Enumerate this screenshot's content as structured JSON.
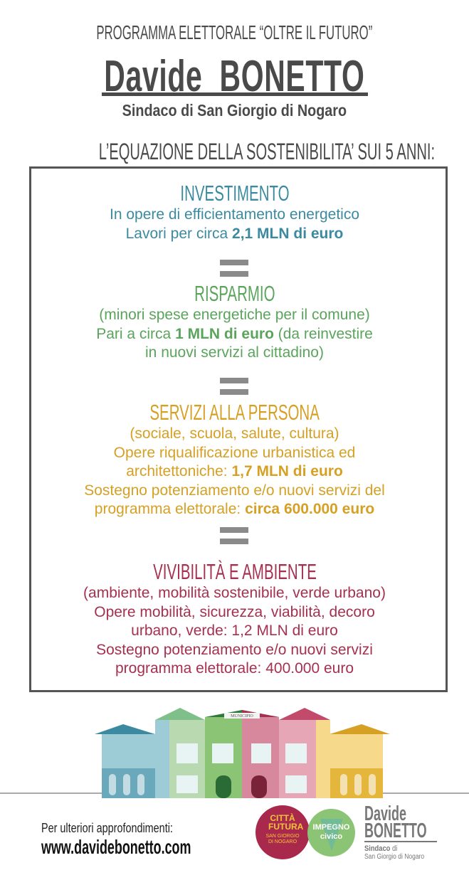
{
  "header": {
    "program_title": "PROGRAMMA ELETTORALE “OLTRE IL FUTURO”",
    "candidate_name": "Davide  BONETTO",
    "candidate_role": "Sindaco di San Giorgio di Nogaro",
    "equation_title": "L’EQUAZIONE DELLA SOSTENIBILITA’ SUI 5 ANNI:"
  },
  "colors": {
    "investimento": "#3b8aa0",
    "risparmio": "#5aa45c",
    "servizi": "#d6a024",
    "vivibilita": "#a5304f"
  },
  "equals_symbol": "=",
  "sections": [
    {
      "title": "INVESTIMENTO",
      "lines": [
        {
          "pre": "In opere di efficientamento energetico"
        },
        {
          "pre": "Lavori per circa ",
          "bold": "2,1 MLN di euro"
        }
      ]
    },
    {
      "title": "RISPARMIO",
      "lines": [
        {
          "pre": "(minori spese energetiche per il comune)"
        },
        {
          "pre": "Pari a circa ",
          "bold": "1 MLN di euro",
          "post": " (da reinvestire"
        },
        {
          "pre": "in nuovi servizi al cittadino)"
        }
      ]
    },
    {
      "title": "SERVIZI ALLA PERSONA",
      "lines": [
        {
          "pre": "(sociale, scuola, salute, cultura)"
        },
        {
          "pre": "Opere riqualificazione urbanistica ed"
        },
        {
          "pre": "architettoniche: ",
          "bold": "1,7 MLN di euro"
        },
        {
          "pre": "Sostegno potenziamento e/o nuovi servizi del"
        },
        {
          "pre": "programma elettorale: ",
          "bold": "circa 600.000 euro"
        }
      ]
    },
    {
      "title": "VIVIBILITÀ E AMBIENTE",
      "lines": [
        {
          "pre": "(ambiente, mobilità sostenibile, verde urbano)"
        },
        {
          "pre": "Opere mobilità, sicurezza, viabilità, decoro"
        },
        {
          "pre": "urbano, verde: 1,2 MLN di euro"
        },
        {
          "pre": "Sostegno potenziamento e/o nuovi servizi"
        },
        {
          "pre": "programma elettorale: 400.000 euro"
        }
      ]
    }
  ],
  "illustration": {
    "sign": "MUNICIPIO"
  },
  "footer": {
    "more_info": "Per ulteriori approfondimenti:",
    "website": "www.davidebonetto.com",
    "logo_citta_futura": {
      "name": "CITTÀ FUTURA",
      "place": "SAN GIORGIO DI NOGARO"
    },
    "logo_impegno_civico": {
      "line1": "IMPEGNO",
      "line2": "civico"
    },
    "logo_candidate": {
      "line1": "Davide",
      "line2": "BONETTO",
      "role": "Sindaco",
      "role_di": " di",
      "place": "San Giorgio di Nogaro"
    }
  }
}
